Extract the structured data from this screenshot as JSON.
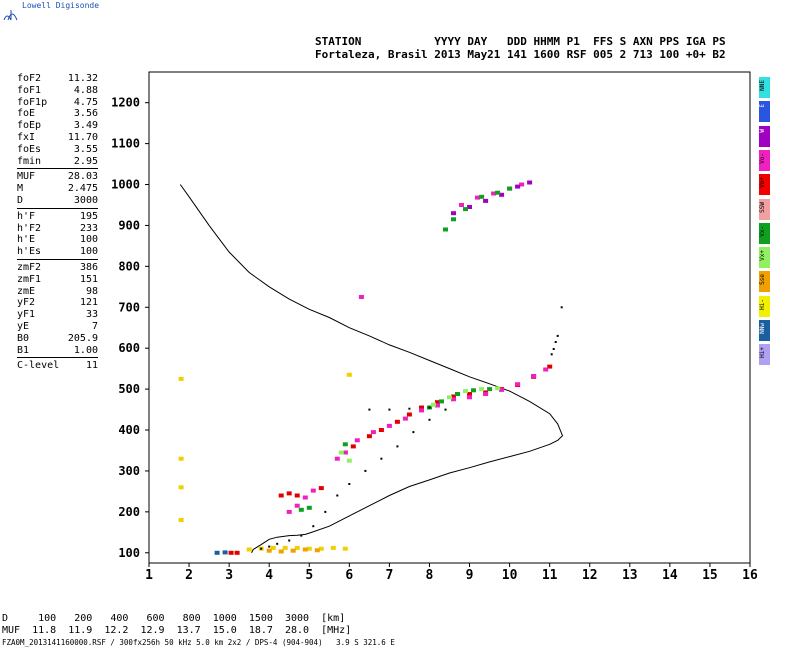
{
  "brand": "Lowell Digisonde",
  "header": {
    "line1": "STATION           YYYY DAY   DDD HHMM P1  FFS S AXN PPS IGA PS",
    "line2": "Fortaleza, Brasil 2013 May21 141 1600 RSF 005 2 713 100 +0+ B2"
  },
  "params": [
    [
      {
        "label": "foF2",
        "value": "11.32"
      },
      {
        "label": "foF1",
        "value": "4.88"
      },
      {
        "label": "foF1p",
        "value": "4.75"
      },
      {
        "label": "foE",
        "value": "3.56"
      },
      {
        "label": "foEp",
        "value": "3.49"
      },
      {
        "label": "fxI",
        "value": "11.70"
      },
      {
        "label": "foEs",
        "value": "3.55"
      },
      {
        "label": "fmin",
        "value": "2.95"
      }
    ],
    [
      {
        "label": "MUF",
        "value": "28.03"
      },
      {
        "label": "M",
        "value": "2.475"
      },
      {
        "label": "D",
        "value": "3000"
      }
    ],
    [
      {
        "label": "h'F",
        "value": "195"
      },
      {
        "label": "h'F2",
        "value": "233"
      },
      {
        "label": "h'E",
        "value": "100"
      },
      {
        "label": "h'Es",
        "value": "100"
      }
    ],
    [
      {
        "label": "zmF2",
        "value": "386"
      },
      {
        "label": "zmF1",
        "value": "151"
      },
      {
        "label": "zmE",
        "value": "98"
      },
      {
        "label": "yF2",
        "value": "121"
      },
      {
        "label": "yF1",
        "value": "33"
      },
      {
        "label": "yE",
        "value": "7"
      },
      {
        "label": "B0",
        "value": "205.9"
      },
      {
        "label": "B1",
        "value": "1.00"
      }
    ],
    [
      {
        "label": "C-level",
        "value": "11"
      }
    ]
  ],
  "legend": [
    {
      "label": "NNE",
      "color": "#32e0e0"
    },
    {
      "label": "E",
      "color": "#2a55e0"
    },
    {
      "label": "W",
      "color": "#a000c0"
    },
    {
      "label": "Vo-",
      "color": "#f020c0"
    },
    {
      "label": "Vo+",
      "color": "#f00000"
    },
    {
      "label": "SSW",
      "color": "#f0a0a0"
    },
    {
      "label": "Vx-",
      "color": "#10a020"
    },
    {
      "label": "Vx+",
      "color": "#90f060"
    },
    {
      "label": "Sse",
      "color": "#f0a000"
    },
    {
      "label": "Hi-",
      "color": "#f0f000"
    },
    {
      "label": "NNw",
      "color": "#1a5fa0"
    },
    {
      "label": "Hi+",
      "color": "#b0a0f0"
    }
  ],
  "footer": {
    "line1": "D     100   200   400   600   800  1000  1500  3000  [km]",
    "line2": "MUF  11.8  11.9  12.2  12.9  13.7  15.0  18.7  28.0  [MHz]",
    "line3": "FZA0M_2013141160000.RSF / 300fx256h 50 kHz 5.0 km 2x2 / DPS-4 (904-904)   3.9 S 321.6 E"
  },
  "chart_data": {
    "type": "scatter",
    "xlim": [
      1,
      16
    ],
    "ylim": [
      75,
      1275
    ],
    "xticks": [
      "1",
      "2",
      "3",
      "4",
      "5",
      "6",
      "7",
      "8",
      "9",
      "10",
      "11",
      "12",
      "13",
      "14",
      "15",
      "16"
    ],
    "yticks": [
      "100",
      "200",
      "300",
      "400",
      "500",
      "600",
      "700",
      "800",
      "900",
      "1000",
      "1100",
      "1200"
    ],
    "series": [
      {
        "name": "Vo+",
        "color": "#e00000",
        "points": [
          [
            3.05,
            100
          ],
          [
            3.2,
            100
          ],
          [
            4.3,
            240
          ],
          [
            4.5,
            245
          ],
          [
            4.7,
            240
          ],
          [
            5.3,
            258
          ],
          [
            5.9,
            345
          ],
          [
            6.1,
            360
          ],
          [
            6.5,
            385
          ],
          [
            6.8,
            400
          ],
          [
            7.2,
            420
          ],
          [
            7.5,
            438
          ],
          [
            7.8,
            455
          ],
          [
            8.2,
            468
          ],
          [
            8.6,
            482
          ],
          [
            9.0,
            488
          ],
          [
            9.4,
            492
          ],
          [
            9.8,
            500
          ],
          [
            10.2,
            510
          ],
          [
            10.6,
            530
          ],
          [
            11.0,
            555
          ]
        ]
      },
      {
        "name": "Vo-",
        "color": "#f020c0",
        "points": [
          [
            4.5,
            200
          ],
          [
            4.7,
            215
          ],
          [
            4.9,
            235
          ],
          [
            5.1,
            252
          ],
          [
            5.7,
            330
          ],
          [
            5.9,
            345
          ],
          [
            6.2,
            375
          ],
          [
            6.6,
            395
          ],
          [
            7.0,
            410
          ],
          [
            7.4,
            428
          ],
          [
            7.8,
            448
          ],
          [
            8.2,
            460
          ],
          [
            8.6,
            475
          ],
          [
            9.0,
            480
          ],
          [
            9.4,
            488
          ],
          [
            9.8,
            498
          ],
          [
            10.2,
            512
          ],
          [
            10.6,
            532
          ],
          [
            10.9,
            548
          ],
          [
            6.3,
            725
          ],
          [
            8.8,
            950
          ],
          [
            9.2,
            968
          ],
          [
            9.6,
            978
          ],
          [
            10.0,
            990
          ],
          [
            10.3,
            1000
          ]
        ]
      },
      {
        "name": "W",
        "color": "#a000c0",
        "points": [
          [
            8.6,
            930
          ],
          [
            9.0,
            945
          ],
          [
            9.4,
            960
          ],
          [
            9.8,
            975
          ],
          [
            10.2,
            995
          ],
          [
            10.5,
            1005
          ]
        ]
      },
      {
        "name": "Vx-",
        "color": "#10a020",
        "points": [
          [
            4.8,
            205
          ],
          [
            5.0,
            210
          ],
          [
            5.9,
            365
          ],
          [
            8.0,
            455
          ],
          [
            8.3,
            470
          ],
          [
            8.7,
            488
          ],
          [
            9.1,
            497
          ],
          [
            9.5,
            500
          ],
          [
            8.4,
            890
          ],
          [
            8.6,
            915
          ],
          [
            8.9,
            940
          ],
          [
            9.3,
            970
          ],
          [
            9.7,
            980
          ],
          [
            10.0,
            990
          ]
        ]
      },
      {
        "name": "Vx+",
        "color": "#90f060",
        "points": [
          [
            5.8,
            345
          ],
          [
            6.0,
            325
          ],
          [
            8.1,
            462
          ],
          [
            8.5,
            480
          ],
          [
            8.9,
            495
          ],
          [
            9.3,
            500
          ],
          [
            9.7,
            502
          ]
        ]
      },
      {
        "name": "Hi-",
        "color": "#f0d000",
        "points": [
          [
            1.8,
            525
          ],
          [
            1.8,
            330
          ],
          [
            1.8,
            260
          ],
          [
            1.8,
            180
          ],
          [
            3.5,
            108
          ],
          [
            3.8,
            110
          ],
          [
            4.1,
            112
          ],
          [
            4.4,
            112
          ],
          [
            4.7,
            112
          ],
          [
            5.0,
            110
          ],
          [
            5.3,
            110
          ],
          [
            5.6,
            112
          ],
          [
            5.9,
            110
          ],
          [
            6.0,
            535
          ]
        ]
      },
      {
        "name": "Sse",
        "color": "#f0a000",
        "points": [
          [
            4.0,
            105
          ],
          [
            4.3,
            103
          ],
          [
            4.6,
            105
          ],
          [
            4.9,
            108
          ],
          [
            5.2,
            106
          ]
        ]
      },
      {
        "name": "trace",
        "color": "#000000",
        "points": [
          [
            3.8,
            110
          ],
          [
            4.0,
            115
          ],
          [
            4.2,
            122
          ],
          [
            4.5,
            130
          ],
          [
            4.8,
            142
          ],
          [
            5.1,
            165
          ],
          [
            5.4,
            200
          ],
          [
            5.7,
            240
          ],
          [
            6.0,
            268
          ],
          [
            6.4,
            300
          ],
          [
            6.8,
            330
          ],
          [
            7.2,
            360
          ],
          [
            7.6,
            395
          ],
          [
            8.0,
            425
          ],
          [
            8.4,
            450
          ],
          [
            6.5,
            450
          ],
          [
            7.0,
            450
          ],
          [
            7.5,
            452
          ],
          [
            8.0,
            455
          ],
          [
            11.05,
            585
          ],
          [
            11.1,
            598
          ],
          [
            11.15,
            615
          ],
          [
            11.2,
            630
          ],
          [
            11.3,
            700
          ]
        ]
      },
      {
        "name": "NNw",
        "color": "#1a5fa0",
        "points": [
          [
            2.7,
            100
          ],
          [
            2.9,
            101
          ]
        ]
      }
    ],
    "profile": [
      [
        1.78,
        1000
      ],
      [
        2.0,
        970
      ],
      [
        2.5,
        900
      ],
      [
        3.0,
        835
      ],
      [
        3.5,
        785
      ],
      [
        4.0,
        750
      ],
      [
        4.5,
        720
      ],
      [
        5.0,
        695
      ],
      [
        5.5,
        675
      ],
      [
        6.0,
        650
      ],
      [
        6.5,
        630
      ],
      [
        7.0,
        608
      ],
      [
        7.5,
        590
      ],
      [
        8.0,
        570
      ],
      [
        8.5,
        550
      ],
      [
        9.0,
        530
      ],
      [
        9.5,
        513
      ],
      [
        10.0,
        495
      ],
      [
        10.5,
        470
      ],
      [
        11.0,
        440
      ],
      [
        11.2,
        415
      ],
      [
        11.32,
        386
      ],
      [
        11.2,
        375
      ],
      [
        11.0,
        365
      ],
      [
        10.5,
        348
      ],
      [
        10.0,
        335
      ],
      [
        9.5,
        322
      ],
      [
        9.0,
        308
      ],
      [
        8.5,
        295
      ],
      [
        8.0,
        278
      ],
      [
        7.5,
        262
      ],
      [
        7.0,
        240
      ],
      [
        6.5,
        215
      ],
      [
        6.0,
        190
      ],
      [
        5.5,
        165
      ],
      [
        5.0,
        148
      ],
      [
        4.9,
        145
      ],
      [
        4.7,
        143
      ],
      [
        4.5,
        142
      ],
      [
        4.2,
        138
      ],
      [
        4.0,
        133
      ],
      [
        3.8,
        120
      ],
      [
        3.6,
        108
      ],
      [
        3.56,
        100
      ]
    ]
  }
}
